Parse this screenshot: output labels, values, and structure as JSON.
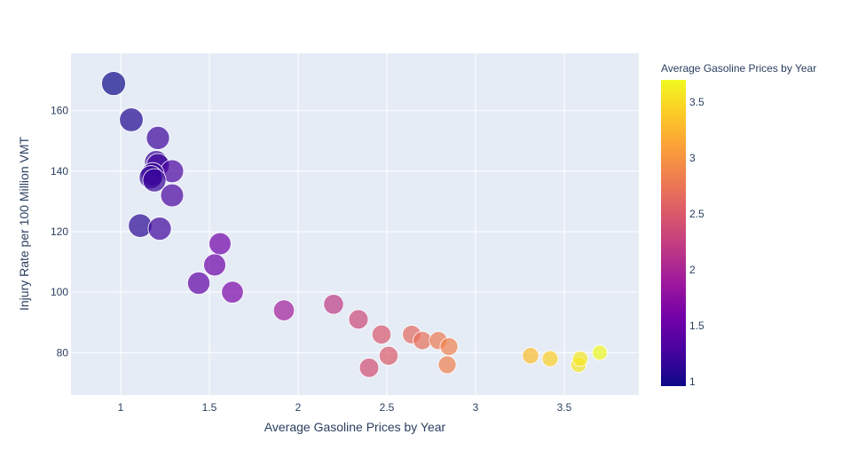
{
  "chart_data": {
    "type": "scatter",
    "xlabel": "Average Gasoline Prices by Year",
    "ylabel": "Injury Rate per 100 Million VMT",
    "colorbar_title": "Average Gasoline Prices by Year",
    "xlim": [
      0.72,
      3.92
    ],
    "ylim": [
      66,
      179
    ],
    "x_ticks": [
      1,
      1.5,
      2,
      2.5,
      3,
      3.5
    ],
    "x_tick_labels": [
      "1",
      "1.5",
      "2",
      "2.5",
      "3",
      "3.5"
    ],
    "y_ticks": [
      80,
      100,
      120,
      140,
      160
    ],
    "y_tick_labels": [
      "80",
      "100",
      "120",
      "140",
      "160"
    ],
    "color_range": [
      0.96,
      3.7
    ],
    "colorbar_ticks": [
      1,
      1.5,
      2,
      2.5,
      3,
      3.5
    ],
    "colorbar_tick_labels": [
      "1",
      "1.5",
      "2",
      "2.5",
      "3",
      "3.5"
    ],
    "colorscale": [
      "#0d0887",
      "#46039f",
      "#7201a8",
      "#9c179e",
      "#bd3786",
      "#d8576b",
      "#ed7953",
      "#fb9f3a",
      "#fdca26",
      "#f0f921"
    ],
    "grid": true,
    "marker_opacity": 0.7,
    "points": [
      {
        "x": 0.96,
        "y": 169
      },
      {
        "x": 1.06,
        "y": 157
      },
      {
        "x": 1.21,
        "y": 151
      },
      {
        "x": 1.2,
        "y": 143
      },
      {
        "x": 1.21,
        "y": 142
      },
      {
        "x": 1.29,
        "y": 140
      },
      {
        "x": 1.18,
        "y": 139
      },
      {
        "x": 1.17,
        "y": 138
      },
      {
        "x": 1.19,
        "y": 137
      },
      {
        "x": 1.29,
        "y": 132
      },
      {
        "x": 1.11,
        "y": 122
      },
      {
        "x": 1.22,
        "y": 121
      },
      {
        "x": 1.56,
        "y": 116
      },
      {
        "x": 1.53,
        "y": 109
      },
      {
        "x": 1.44,
        "y": 103
      },
      {
        "x": 1.63,
        "y": 100
      },
      {
        "x": 1.92,
        "y": 94
      },
      {
        "x": 2.2,
        "y": 96
      },
      {
        "x": 2.34,
        "y": 91
      },
      {
        "x": 2.47,
        "y": 86
      },
      {
        "x": 2.64,
        "y": 86
      },
      {
        "x": 2.7,
        "y": 84
      },
      {
        "x": 2.79,
        "y": 84
      },
      {
        "x": 2.85,
        "y": 82
      },
      {
        "x": 2.51,
        "y": 79
      },
      {
        "x": 2.4,
        "y": 75
      },
      {
        "x": 2.84,
        "y": 76
      },
      {
        "x": 3.31,
        "y": 79
      },
      {
        "x": 3.42,
        "y": 78
      },
      {
        "x": 3.58,
        "y": 76
      },
      {
        "x": 3.59,
        "y": 78
      },
      {
        "x": 3.7,
        "y": 80
      }
    ]
  }
}
